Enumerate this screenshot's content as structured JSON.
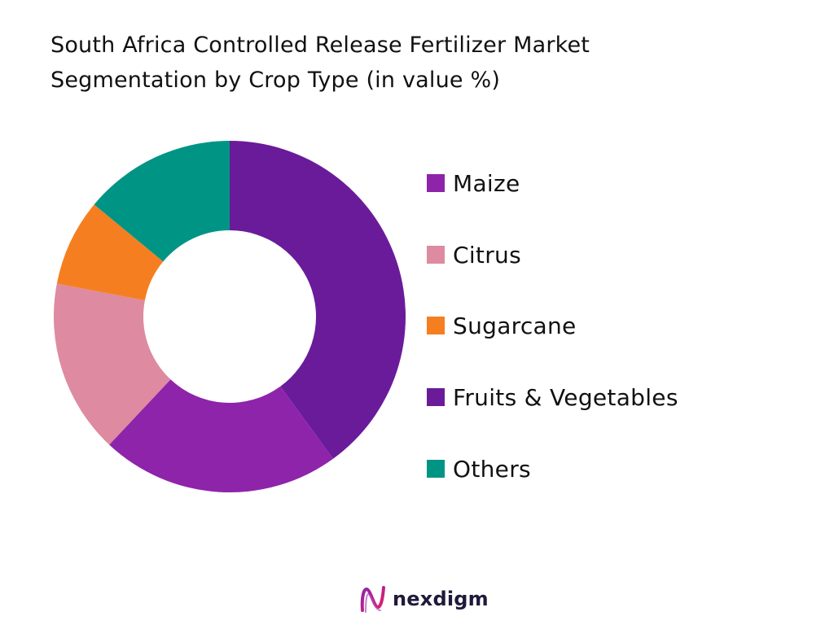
{
  "title": {
    "line1": "South Africa Controlled Release Fertilizer Market",
    "line2": "Segmentation by Crop Type (in value %)"
  },
  "chart_data": {
    "type": "pie",
    "style": "donut",
    "title": "South Africa Controlled Release Fertilizer Market Segmentation by Crop Type (in value %)",
    "unit": "%",
    "legend_position": "right",
    "slices": [
      {
        "label": "Fruits & Vegetables",
        "value": 40,
        "color": "#6a1b9a"
      },
      {
        "label": "Maize",
        "value": 22,
        "color": "#8e24aa"
      },
      {
        "label": "Citrus",
        "value": 16,
        "color": "#de8aa0"
      },
      {
        "label": "Sugarcane",
        "value": 8,
        "color": "#f57f20"
      },
      {
        "label": "Others",
        "value": 14,
        "color": "#009485"
      }
    ]
  },
  "legend": {
    "items": [
      {
        "label": "Maize",
        "color": "#8e24aa"
      },
      {
        "label": "Citrus",
        "color": "#de8aa0"
      },
      {
        "label": "Sugarcane",
        "color": "#f57f20"
      },
      {
        "label": "Fruits & Vegetables",
        "color": "#6a1b9a"
      },
      {
        "label": "Others",
        "color": "#009485"
      }
    ]
  },
  "brand": {
    "name": "nexdigm",
    "icon": "nexdigm-logo-icon",
    "colors": [
      "#8e24aa",
      "#e91e63"
    ]
  }
}
